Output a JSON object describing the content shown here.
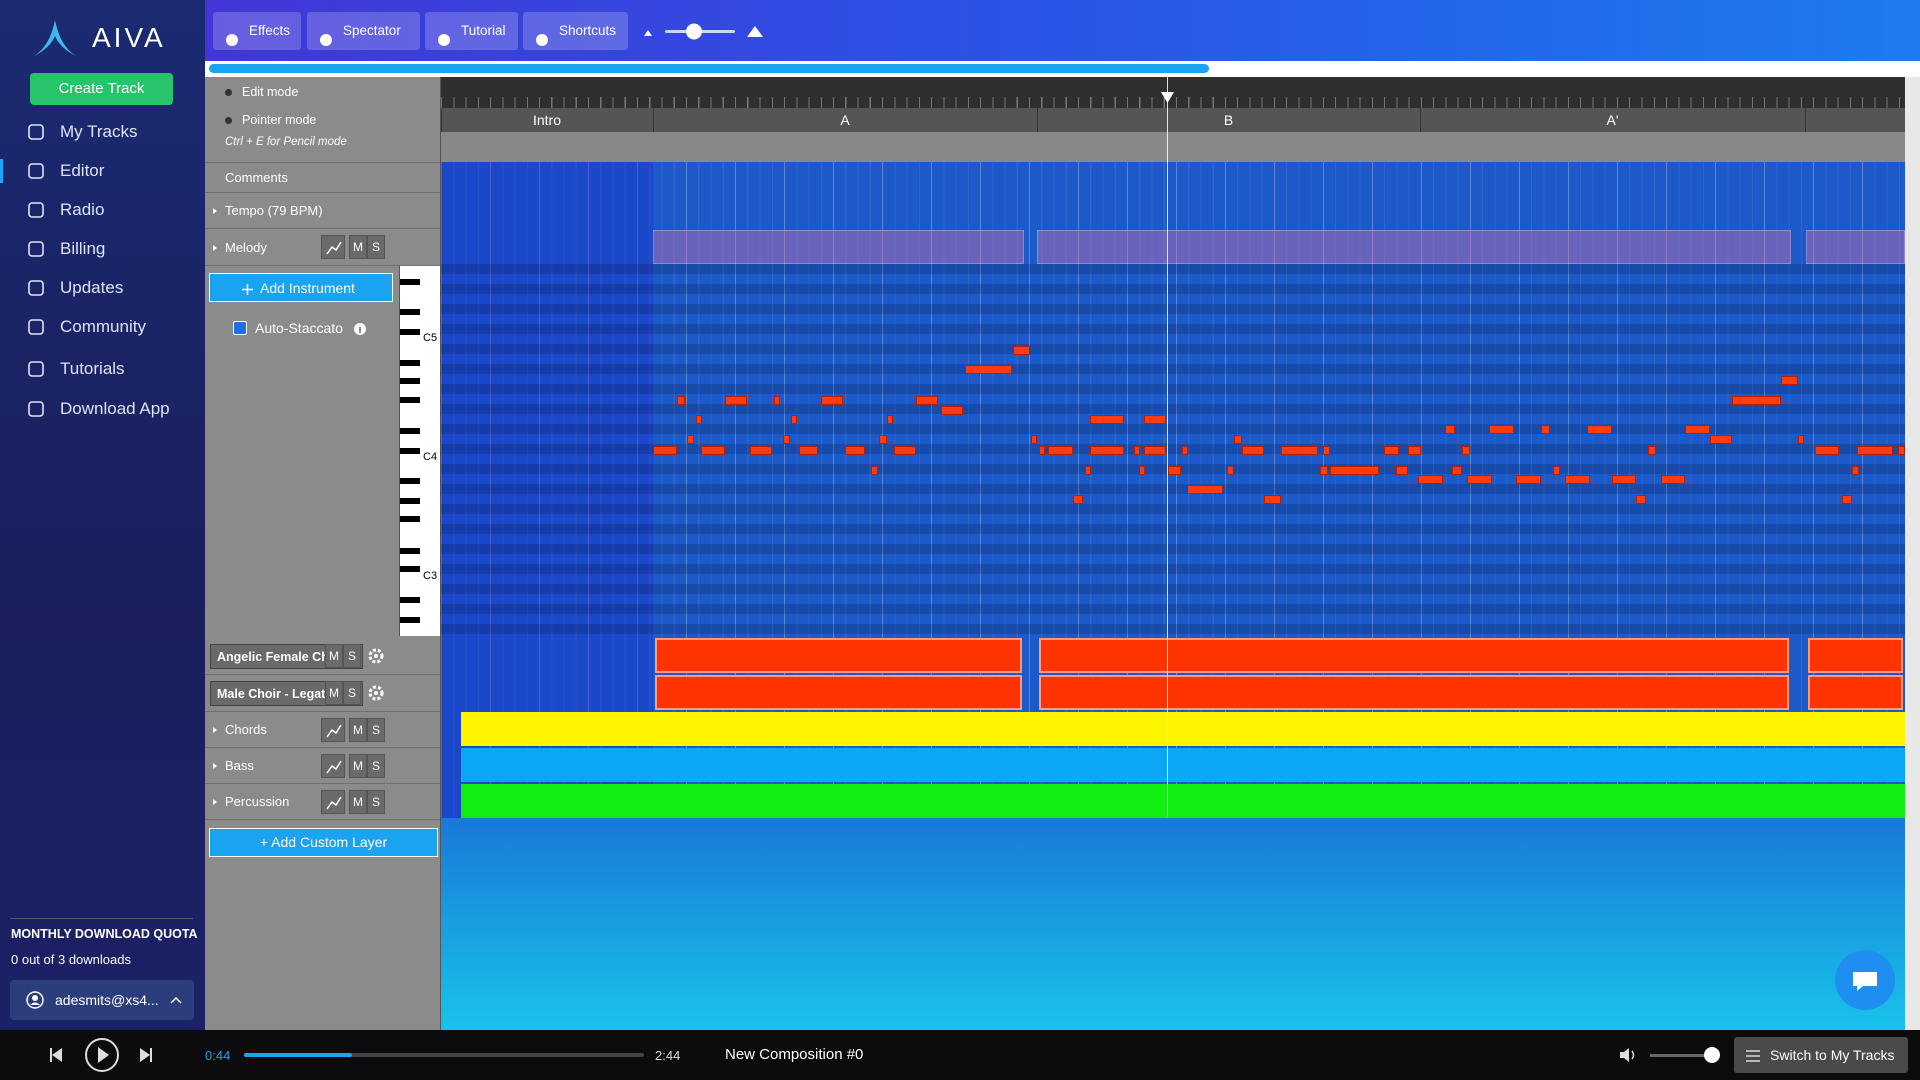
{
  "sidebar": {
    "brand": "AIVA",
    "create_track": "Create Track",
    "nav": [
      "My Tracks",
      "Editor",
      "Radio",
      "Billing",
      "Updates",
      "Community",
      "Tutorials",
      "Download App"
    ],
    "quota_title": "MONTHLY DOWNLOAD QUOTA",
    "quota_text": "0 out of 3 downloads",
    "user": "adesmits@xs4..."
  },
  "toolbar": {
    "buttons": [
      "Effects",
      "Spectator",
      "Tutorial",
      "Shortcuts"
    ]
  },
  "editor": {
    "modes": [
      "Edit mode",
      "Pointer mode"
    ],
    "mode_hint": "Ctrl + E for Pencil mode",
    "sections": [
      "Intro",
      "A",
      "B",
      "A'"
    ],
    "comments": "Comments",
    "tempo": "Tempo (79 BPM)",
    "melody": "Melody",
    "add_instrument": "Add Instrument",
    "auto_staccato": "Auto-Staccato",
    "octaves": [
      "C5",
      "C4",
      "C3"
    ],
    "instruments": [
      "Angelic Female Choir - S",
      "Male Choir - Legato"
    ],
    "layers": [
      "Chords",
      "Bass",
      "Percussion"
    ],
    "mute": "M",
    "solo": "S",
    "add_custom_layer": "+ Add Custom Layer"
  },
  "player": {
    "elapsed": "0:44",
    "duration": "2:44",
    "title": "New Composition #0",
    "switch": "Switch to My Tracks"
  }
}
